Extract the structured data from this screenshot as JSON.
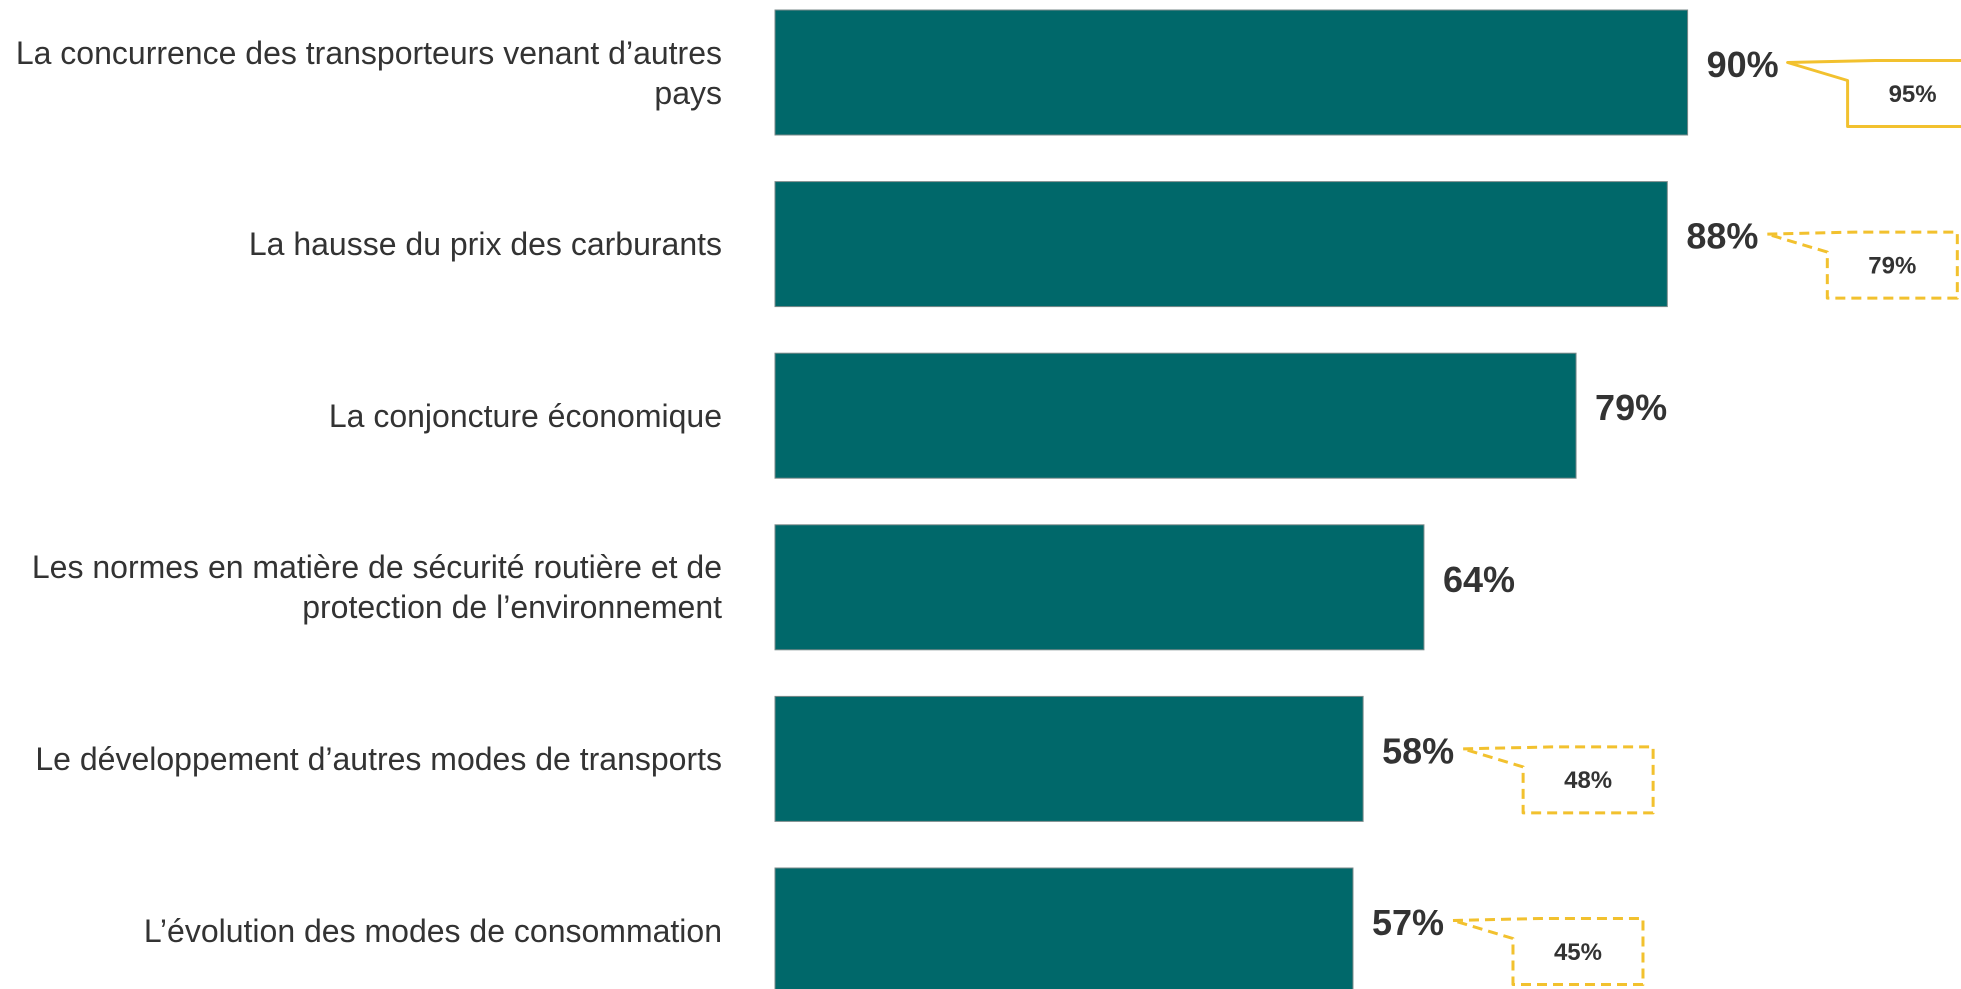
{
  "chart_data": {
    "type": "bar",
    "orientation": "horizontal",
    "categories": [
      "La concurrence des transporteurs venant d’autres pays",
      "La hausse du prix des carburants",
      "La conjoncture économique",
      "Les normes en matière de sécurité routière et de protection de l’environnement",
      "Le développement d’autres modes de transports",
      "L’évolution des modes de consommation"
    ],
    "values": [
      90,
      88,
      79,
      64,
      58,
      57
    ],
    "value_labels": [
      "90%",
      "88%",
      "79%",
      "64%",
      "58%",
      "57%"
    ],
    "color": "#00686a",
    "xlim": [
      0,
      100
    ],
    "comparison": {
      "values": [
        95,
        79,
        null,
        null,
        48,
        45
      ],
      "value_labels": [
        "95%",
        "79%",
        null,
        null,
        "48%",
        "45%"
      ],
      "line_styles": [
        "solid",
        "dashed",
        null,
        null,
        "dashed",
        "dashed"
      ],
      "color": "#f2c12e"
    }
  }
}
